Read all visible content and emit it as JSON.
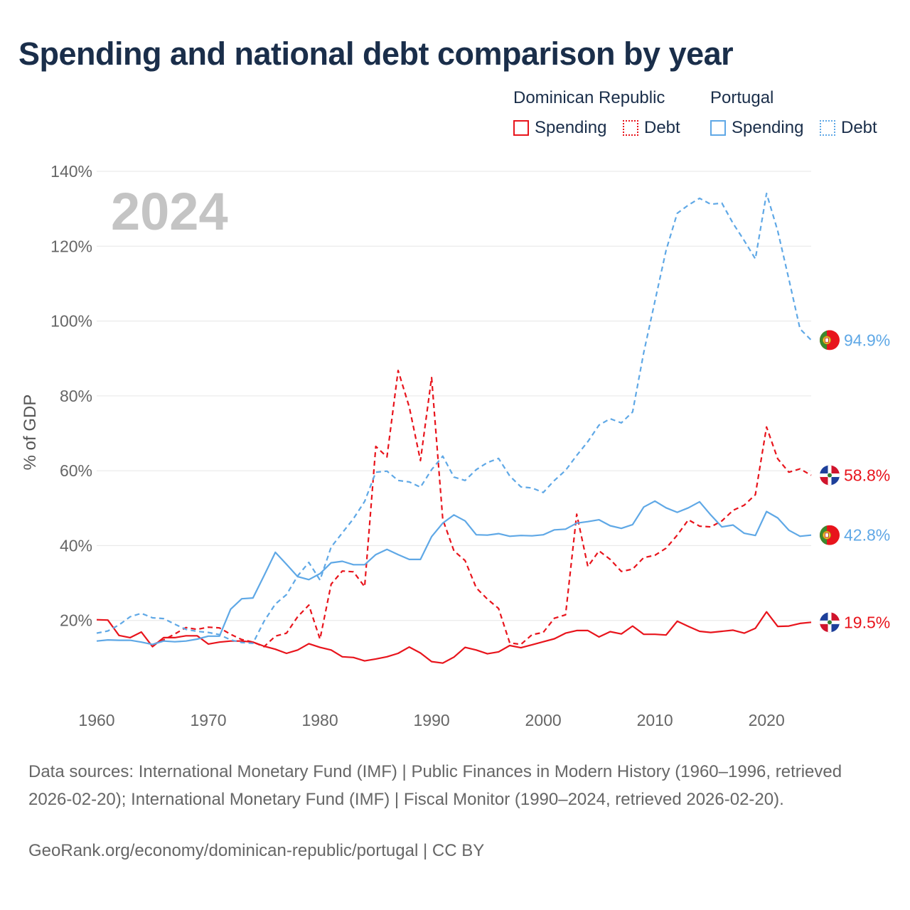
{
  "title": "Spending and national debt comparison by year",
  "legend": {
    "groups": [
      {
        "name": "Dominican Republic",
        "items": [
          "Spending",
          "Debt"
        ],
        "color": "#e8141c"
      },
      {
        "name": "Portugal",
        "items": [
          "Spending",
          "Debt"
        ],
        "color": "#5fa8e6"
      }
    ]
  },
  "year_watermark": "2024",
  "footer": {
    "sources": "Data sources: International Monetary Fund (IMF) | Public Finances in Modern History (1960–1996, retrieved 2026-02-20); International Monetary Fund (IMF) | Fiscal Monitor (1990–2024, retrieved 2026-02-20).",
    "credit": "GeoRank.org/economy/dominican-republic/portugal | CC BY"
  },
  "chart_data": {
    "type": "line",
    "title": "Spending and national debt comparison by year",
    "xlabel": "",
    "ylabel": "% of GDP",
    "xlim": [
      1960,
      2024
    ],
    "ylim": [
      0,
      140
    ],
    "x_ticks": [
      1960,
      1970,
      1980,
      1990,
      2000,
      2010,
      2020
    ],
    "y_ticks": [
      20,
      40,
      60,
      80,
      100,
      120,
      140
    ],
    "y_tick_labels": [
      "20%",
      "40%",
      "60%",
      "80%",
      "100%",
      "120%",
      "140%"
    ],
    "grid": true,
    "series": [
      {
        "name": "Dominican Republic Spending",
        "country": "Dominican Republic",
        "metric": "Spending",
        "style": "solid",
        "color": "#e8141c",
        "end_label": "19.5%",
        "flag": "dominican-republic",
        "x": [
          1960,
          1961,
          1962,
          1963,
          1964,
          1965,
          1966,
          1967,
          1968,
          1969,
          1970,
          1971,
          1972,
          1973,
          1974,
          1975,
          1976,
          1977,
          1978,
          1979,
          1980,
          1981,
          1982,
          1983,
          1984,
          1985,
          1986,
          1987,
          1988,
          1989,
          1990,
          1991,
          1992,
          1993,
          1994,
          1995,
          1996,
          1997,
          1998,
          1999,
          2000,
          2001,
          2002,
          2003,
          2004,
          2005,
          2006,
          2007,
          2008,
          2009,
          2010,
          2011,
          2012,
          2013,
          2014,
          2015,
          2016,
          2017,
          2018,
          2019,
          2020,
          2021,
          2022,
          2023,
          2024
        ],
        "values": [
          20.2,
          20.1,
          16.0,
          15.4,
          16.9,
          13.0,
          15.4,
          15.4,
          15.9,
          15.9,
          13.7,
          14.2,
          14.5,
          14.5,
          14.2,
          13.1,
          12.3,
          11.2,
          12.1,
          13.8,
          12.8,
          12.1,
          10.3,
          10.1,
          9.2,
          9.7,
          10.3,
          11.2,
          12.9,
          11.3,
          9.0,
          8.6,
          10.2,
          12.8,
          12.1,
          11.1,
          11.6,
          13.3,
          12.7,
          13.5,
          14.3,
          15.1,
          16.6,
          17.3,
          17.3,
          15.6,
          17.0,
          16.4,
          18.5,
          16.3,
          16.3,
          16.1,
          19.8,
          18.4,
          17.1,
          16.8,
          17.1,
          17.4,
          16.6,
          17.9,
          22.3,
          18.4,
          18.5,
          19.2,
          19.5
        ]
      },
      {
        "name": "Dominican Republic Debt",
        "country": "Dominican Republic",
        "metric": "Debt",
        "style": "dashed",
        "color": "#e8141c",
        "end_label": "58.8%",
        "flag": "dominican-republic",
        "x": [
          1965,
          1966,
          1967,
          1968,
          1969,
          1970,
          1971,
          1972,
          1973,
          1974,
          1975,
          1976,
          1977,
          1978,
          1979,
          1980,
          1981,
          1982,
          1983,
          1984,
          1985,
          1986,
          1987,
          1988,
          1989,
          1990,
          1991,
          1992,
          1993,
          1994,
          1995,
          1996,
          1997,
          1998,
          1999,
          2000,
          2001,
          2002,
          2003,
          2004,
          2005,
          2006,
          2007,
          2008,
          2009,
          2010,
          2011,
          2012,
          2013,
          2014,
          2015,
          2016,
          2017,
          2018,
          2019,
          2020,
          2021,
          2022,
          2023,
          2024
        ],
        "values": [
          13.5,
          14.8,
          16.4,
          18.1,
          17.6,
          18.2,
          18.0,
          16.3,
          14.9,
          14.2,
          13.0,
          15.8,
          16.6,
          21.0,
          24.1,
          15.0,
          29.7,
          33.2,
          33.0,
          29.0,
          66.5,
          63.7,
          86.8,
          77.0,
          62.7,
          84.9,
          47.0,
          38.6,
          36.0,
          28.7,
          25.7,
          23.2,
          14.0,
          13.6,
          16.2,
          16.8,
          20.6,
          21.5,
          48.4,
          34.4,
          38.6,
          36.3,
          33.1,
          33.7,
          36.8,
          37.4,
          39.3,
          42.8,
          46.9,
          45.2,
          45.0,
          46.6,
          49.4,
          50.8,
          53.6,
          71.7,
          63.2,
          59.6,
          60.5,
          58.8
        ]
      },
      {
        "name": "Portugal Spending",
        "country": "Portugal",
        "metric": "Spending",
        "style": "solid",
        "color": "#5fa8e6",
        "end_label": "42.8%",
        "flag": "portugal",
        "x": [
          1960,
          1961,
          1962,
          1963,
          1964,
          1965,
          1966,
          1967,
          1968,
          1969,
          1970,
          1971,
          1972,
          1973,
          1974,
          1975,
          1976,
          1977,
          1978,
          1979,
          1980,
          1981,
          1982,
          1983,
          1984,
          1985,
          1986,
          1987,
          1988,
          1989,
          1990,
          1991,
          1992,
          1993,
          1994,
          1995,
          1996,
          1997,
          1998,
          1999,
          2000,
          2001,
          2002,
          2003,
          2004,
          2005,
          2006,
          2007,
          2008,
          2009,
          2010,
          2011,
          2012,
          2013,
          2014,
          2015,
          2016,
          2017,
          2018,
          2019,
          2020,
          2021,
          2022,
          2023,
          2024
        ],
        "values": [
          14.5,
          14.8,
          14.7,
          14.7,
          14.2,
          13.6,
          14.5,
          14.3,
          14.5,
          15.0,
          15.8,
          15.8,
          23.0,
          25.8,
          26.0,
          32.0,
          38.2,
          35.0,
          31.7,
          30.9,
          32.5,
          35.4,
          35.8,
          34.9,
          34.9,
          37.6,
          39.0,
          37.6,
          36.3,
          36.3,
          42.4,
          46.0,
          48.2,
          46.6,
          42.9,
          42.8,
          43.2,
          42.5,
          42.7,
          42.6,
          42.9,
          44.2,
          44.4,
          46.0,
          46.4,
          46.9,
          45.3,
          44.6,
          45.6,
          50.3,
          51.9,
          50.1,
          48.9,
          50.1,
          51.7,
          48.2,
          45.0,
          45.5,
          43.3,
          42.7,
          49.1,
          47.4,
          44.1,
          42.5,
          42.8
        ]
      },
      {
        "name": "Portugal Debt",
        "country": "Portugal",
        "metric": "Debt",
        "style": "dashed",
        "color": "#5fa8e6",
        "end_label": "94.9%",
        "flag": "portugal",
        "x": [
          1960,
          1961,
          1962,
          1963,
          1964,
          1965,
          1966,
          1967,
          1968,
          1969,
          1970,
          1971,
          1972,
          1973,
          1974,
          1975,
          1976,
          1977,
          1978,
          1979,
          1980,
          1981,
          1982,
          1983,
          1984,
          1985,
          1986,
          1987,
          1988,
          1989,
          1990,
          1991,
          1992,
          1993,
          1994,
          1995,
          1996,
          1997,
          1998,
          1999,
          2000,
          2001,
          2002,
          2003,
          2004,
          2005,
          2006,
          2007,
          2008,
          2009,
          2010,
          2011,
          2012,
          2013,
          2014,
          2015,
          2016,
          2017,
          2018,
          2019,
          2020,
          2021,
          2022,
          2023,
          2024
        ],
        "values": [
          16.6,
          17.2,
          18.8,
          21.0,
          21.9,
          20.7,
          20.5,
          19.0,
          17.6,
          17.1,
          16.8,
          16.2,
          14.8,
          14.1,
          13.9,
          19.8,
          24.4,
          26.9,
          31.9,
          35.5,
          30.8,
          39.6,
          43.4,
          47.2,
          51.8,
          59.6,
          59.9,
          57.4,
          57.0,
          55.6,
          60.3,
          63.9,
          58.3,
          57.4,
          60.3,
          62.2,
          63.3,
          58.6,
          55.7,
          55.4,
          54.2,
          57.4,
          60.1,
          64.1,
          67.8,
          72.2,
          73.9,
          72.8,
          75.7,
          91.6,
          105.3,
          118.9,
          128.8,
          131.0,
          132.8,
          131.2,
          131.5,
          126.1,
          121.5,
          116.6,
          134.1,
          124.1,
          111.2,
          97.9,
          94.9
        ]
      }
    ]
  }
}
